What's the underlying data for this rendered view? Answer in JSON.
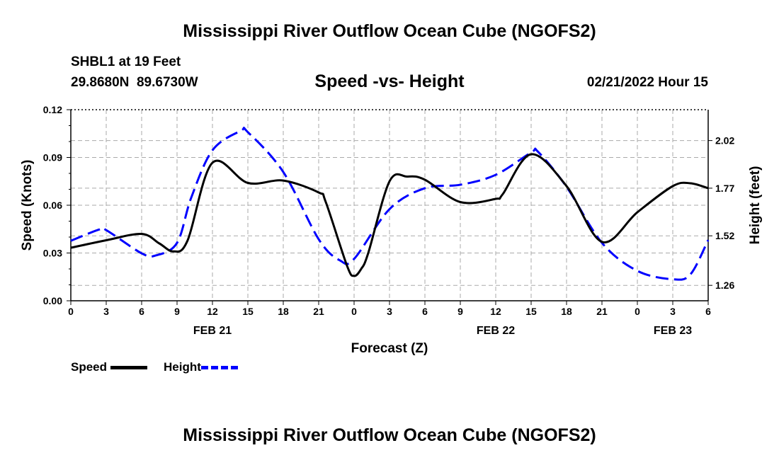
{
  "chart_data": {
    "type": "line",
    "title": "Mississippi River Outflow Ocean Cube (NGOFS2)",
    "footer_title": "Mississippi River Outflow Ocean Cube (NGOFS2)",
    "subtitle": "Speed -vs- Height",
    "station": "SHBL1 at 19 Feet",
    "location": "29.8680N  89.6730W",
    "datetime": "02/21/2022 Hour 15",
    "xlabel": "Forecast (Z)",
    "ylabel": "Speed (Knots)",
    "y2label": "Height (feet)",
    "xlim": [
      0,
      54
    ],
    "ylim": [
      0,
      0.12
    ],
    "y2lim": [
      1.179,
      2.182
    ],
    "x_tick_labels": [
      "0",
      "3",
      "6",
      "9",
      "12",
      "15",
      "18",
      "21",
      "0",
      "3",
      "6",
      "9",
      "12",
      "15",
      "18",
      "21",
      "0",
      "3",
      "6"
    ],
    "date_labels": [
      {
        "label": "FEB 21",
        "hour": 12
      },
      {
        "label": "FEB 22",
        "hour": 36
      },
      {
        "label": "FEB 23",
        "hour": 51
      }
    ],
    "y_ticks": [
      "0.00",
      "0.03",
      "0.06",
      "0.09",
      "0.12"
    ],
    "y_tick_values": [
      0,
      0.03,
      0.06,
      0.09,
      0.12
    ],
    "y2_ticks": [
      "1.26",
      "1.52",
      "1.77",
      "2.02"
    ],
    "y2_tick_values": [
      1.26,
      1.52,
      1.77,
      2.02
    ],
    "grid": true,
    "legend_placement": "bottom-left",
    "series": [
      {
        "name": "Speed",
        "axis": "left",
        "color": "#000000",
        "style": "solid",
        "x": [
          0,
          3,
          6,
          7.5,
          8.7,
          9.9,
          12,
          15,
          18,
          21,
          21.6,
          23.4,
          24,
          24.6,
          25.2,
          27,
          28.5,
          30,
          33,
          36,
          36.6,
          39,
          42,
          45,
          48,
          51,
          52.5,
          54
        ],
        "y": [
          0.0333,
          0.038,
          0.042,
          0.036,
          0.031,
          0.038,
          0.0867,
          0.074,
          0.0755,
          0.068,
          0.062,
          0.022,
          0.0156,
          0.02,
          0.03,
          0.075,
          0.078,
          0.076,
          0.062,
          0.064,
          0.067,
          0.092,
          0.072,
          0.037,
          0.0556,
          0.072,
          0.0738,
          0.0707
        ]
      },
      {
        "name": "Height",
        "axis": "right",
        "color": "#0000ff",
        "style": "dashed",
        "x": [
          0,
          2.4,
          3,
          6,
          7.2,
          9,
          10.2,
          12,
          14.4,
          15,
          18,
          21,
          22.8,
          24,
          27,
          30,
          33,
          36,
          39,
          39.6,
          42,
          45,
          48,
          51,
          52.5,
          54
        ],
        "y": [
          1.494,
          1.553,
          1.55,
          1.428,
          1.417,
          1.483,
          1.72,
          1.969,
          2.071,
          2.064,
          1.855,
          1.502,
          1.391,
          1.399,
          1.66,
          1.77,
          1.788,
          1.84,
          1.957,
          1.96,
          1.777,
          1.483,
          1.336,
          1.292,
          1.318,
          1.498
        ]
      }
    ]
  }
}
